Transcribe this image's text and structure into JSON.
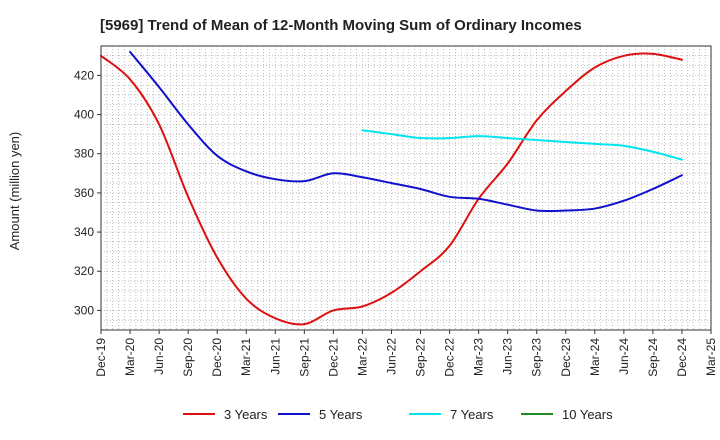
{
  "chart_data": {
    "type": "line",
    "title": "[5969]  Trend of Mean of 12-Month Moving Sum of Ordinary Incomes",
    "xlabel": "",
    "ylabel": "Amount (million yen)",
    "ylim": [
      290,
      435
    ],
    "yticks": [
      300,
      320,
      340,
      360,
      380,
      400,
      420
    ],
    "grid": true,
    "legend_position": "bottom",
    "categories": [
      "Dec-19",
      "Mar-20",
      "Jun-20",
      "Sep-20",
      "Dec-20",
      "Mar-21",
      "Jun-21",
      "Sep-21",
      "Dec-21",
      "Mar-22",
      "Jun-22",
      "Sep-22",
      "Dec-22",
      "Mar-23",
      "Jun-23",
      "Sep-23",
      "Dec-23",
      "Mar-24",
      "Jun-24",
      "Sep-24",
      "Dec-24",
      "Mar-25"
    ],
    "series": [
      {
        "name": "3 Years",
        "color": "#dd1111",
        "values": [
          430,
          418,
          395,
          358,
          327,
          306,
          296,
          293,
          300,
          302,
          309,
          320,
          333,
          357,
          375,
          397,
          412,
          424,
          430,
          431,
          428,
          null
        ]
      },
      {
        "name": "5 Years",
        "color": "#1111cc",
        "values": [
          null,
          432,
          414,
          395,
          379,
          371,
          367,
          366,
          370,
          368,
          365,
          362,
          358,
          357,
          354,
          351,
          351,
          352,
          356,
          362,
          369,
          null
        ]
      },
      {
        "name": "7 Years",
        "color": "#00e5ee",
        "values": [
          null,
          null,
          null,
          null,
          null,
          null,
          null,
          null,
          null,
          392,
          390,
          388,
          388,
          389,
          388,
          387,
          386,
          385,
          384,
          381,
          377,
          null
        ]
      },
      {
        "name": "10 Years",
        "color": "#228b22",
        "values": [
          null,
          null,
          null,
          null,
          null,
          null,
          null,
          null,
          null,
          null,
          null,
          null,
          null,
          null,
          null,
          null,
          null,
          null,
          null,
          null,
          null,
          null
        ]
      }
    ]
  }
}
